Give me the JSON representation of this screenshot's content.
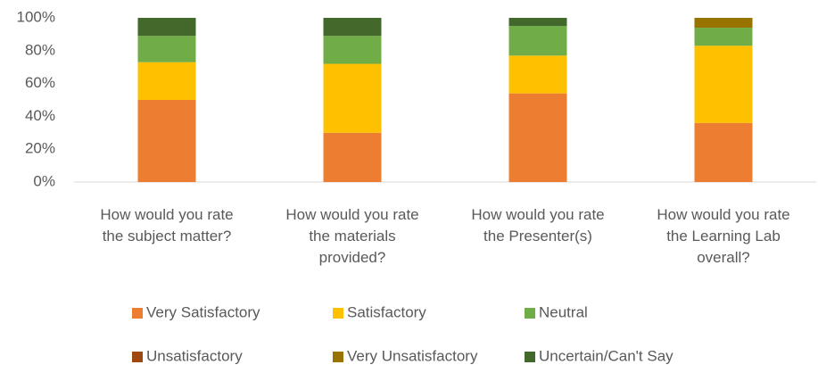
{
  "chart_data": {
    "type": "stacked_bar_percent",
    "categories": [
      "How would you rate the subject matter?",
      "How would you rate the materials provided?",
      "How would you rate the Presenter(s)",
      "How would you rate the Learning Lab overall?"
    ],
    "series": [
      {
        "name": "Very Satisfactory",
        "color": "#ed7d31",
        "values": [
          50,
          30,
          54,
          36
        ]
      },
      {
        "name": "Satisfactory",
        "color": "#ffc000",
        "values": [
          23,
          42,
          23,
          47
        ]
      },
      {
        "name": "Neutral",
        "color": "#70ad47",
        "values": [
          16,
          17,
          18,
          11
        ]
      },
      {
        "name": "Unsatisfactory",
        "color": "#9e480e",
        "values": [
          0,
          0,
          0,
          0
        ]
      },
      {
        "name": "Very Unsatisfactory",
        "color": "#997300",
        "values": [
          0,
          0,
          0,
          6
        ]
      },
      {
        "name": "Uncertain/Can't Say",
        "color": "#43682b",
        "values": [
          11,
          11,
          5,
          0
        ]
      }
    ],
    "ylim": [
      0,
      100
    ],
    "yticks": [
      {
        "value": 0,
        "label": "0%"
      },
      {
        "value": 20,
        "label": "20%"
      },
      {
        "value": 40,
        "label": "40%"
      },
      {
        "value": 60,
        "label": "60%"
      },
      {
        "value": 80,
        "label": "80%"
      },
      {
        "value": 100,
        "label": "100%"
      }
    ],
    "legend": "bottom"
  }
}
